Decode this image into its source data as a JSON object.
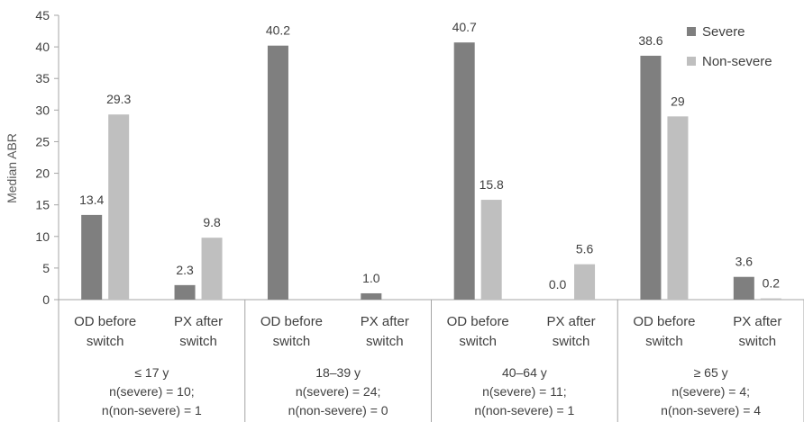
{
  "chart_data": {
    "type": "bar",
    "ylabel": "Median ABR",
    "ylim": [
      0,
      45
    ],
    "yticks": [
      0,
      5,
      10,
      15,
      20,
      25,
      30,
      35,
      40,
      45
    ],
    "legend_position": "top-right",
    "categories": [
      "OD before switch",
      "PX after switch",
      "OD before switch",
      "PX after switch",
      "OD before switch",
      "PX after switch",
      "OD before switch",
      "PX after switch"
    ],
    "category_lines": [
      [
        "OD before",
        "switch"
      ],
      [
        "PX after",
        "switch"
      ],
      [
        "OD before",
        "switch"
      ],
      [
        "PX after",
        "switch"
      ],
      [
        "OD before",
        "switch"
      ],
      [
        "PX after",
        "switch"
      ],
      [
        "OD before",
        "switch"
      ],
      [
        "PX after",
        "switch"
      ]
    ],
    "groups": [
      {
        "lines": [
          "≤ 17 y",
          "n(severe) = 10;",
          "n(non-severe) = 1"
        ]
      },
      {
        "lines": [
          "18–39 y",
          "n(severe) = 24;",
          "n(non-severe) = 0"
        ]
      },
      {
        "lines": [
          "40–64 y",
          "n(severe) = 11;",
          "n(non-severe) = 1"
        ]
      },
      {
        "lines": [
          "≥ 65 y",
          "n(severe) = 4;",
          "n(non-severe) = 4"
        ]
      }
    ],
    "series": [
      {
        "name": "Severe",
        "color": "#7f7f7f",
        "values": [
          13.4,
          2.3,
          40.2,
          1.0,
          40.7,
          0.0,
          38.6,
          3.6
        ],
        "labels": [
          "13.4",
          "2.3",
          "40.2",
          "1.0",
          "40.7",
          "0.0",
          "38.6",
          "3.6"
        ]
      },
      {
        "name": "Non-severe",
        "color": "#bfbfbf",
        "values": [
          29.3,
          9.8,
          null,
          null,
          15.8,
          5.6,
          29,
          0.2
        ],
        "labels": [
          "29.3",
          "9.8",
          null,
          null,
          "15.8",
          "5.6",
          "29",
          "0.2"
        ]
      }
    ]
  }
}
